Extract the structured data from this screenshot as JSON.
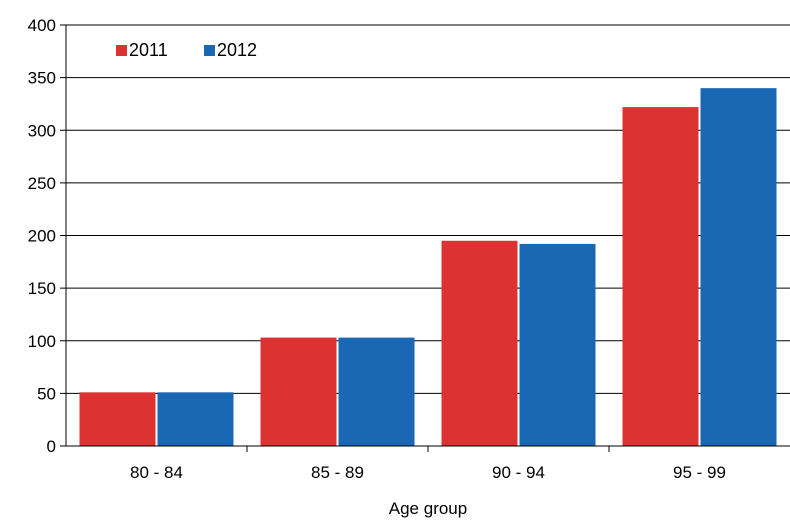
{
  "chart_data": {
    "type": "bar",
    "title": "",
    "xlabel": "Age group",
    "ylabel": "",
    "ylim": [
      0,
      400
    ],
    "yticks": [
      0,
      50,
      100,
      150,
      200,
      250,
      300,
      350,
      400
    ],
    "categories": [
      "80 - 84",
      "85 - 89",
      "90 - 94",
      "95 - 99"
    ],
    "series": [
      {
        "name": "2011",
        "color": "#dc3232",
        "values": [
          51,
          103,
          195,
          322
        ]
      },
      {
        "name": "2012",
        "color": "#1a68b4",
        "values": [
          51,
          103,
          192,
          340
        ]
      }
    ],
    "grid": true,
    "legend_position": "top-left"
  }
}
